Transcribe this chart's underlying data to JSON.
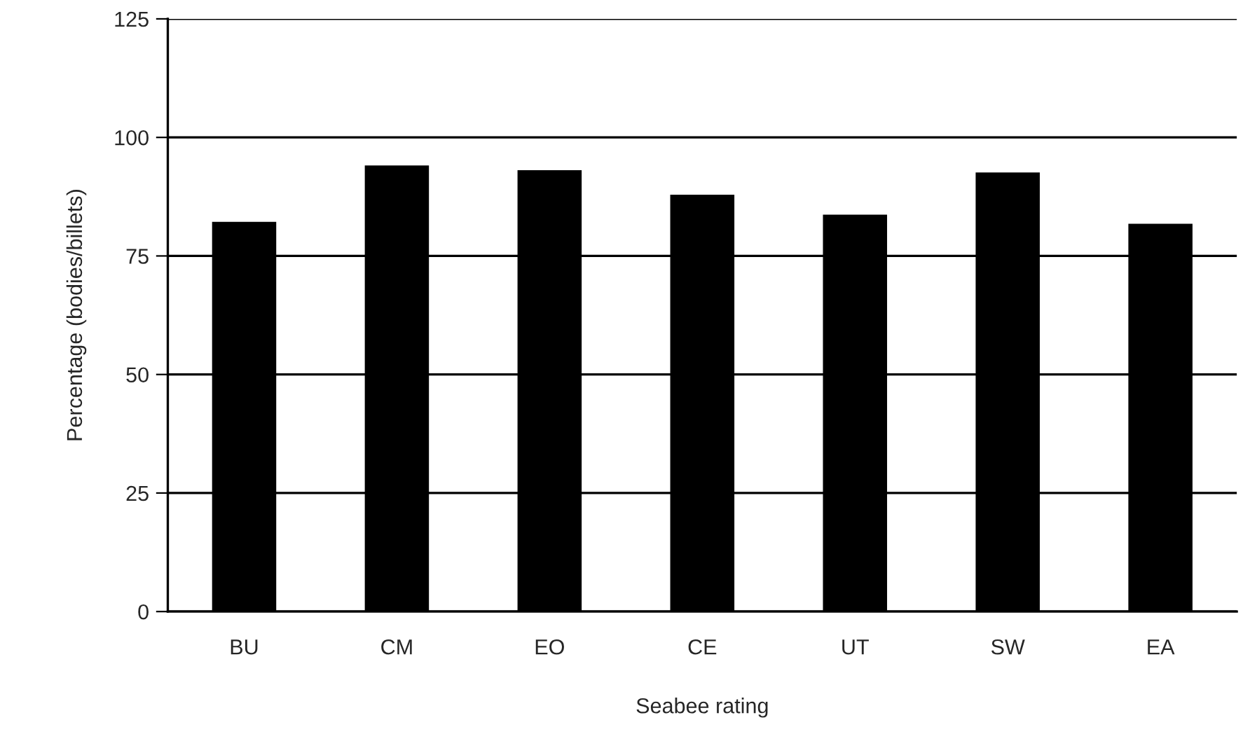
{
  "chart_data": {
    "type": "bar",
    "xlabel": "Seabee rating",
    "ylabel": "Percentage (bodies/billets)",
    "categories": [
      "BU",
      "CM",
      "EO",
      "CE",
      "UT",
      "SW",
      "EA"
    ],
    "values": [
      82.2,
      94.1,
      93.1,
      87.9,
      83.7,
      92.6,
      81.8
    ],
    "color": "#000000",
    "ylim": [
      0,
      125
    ],
    "yticks": [
      0,
      25,
      50,
      75,
      100,
      125
    ],
    "grid": "y"
  }
}
